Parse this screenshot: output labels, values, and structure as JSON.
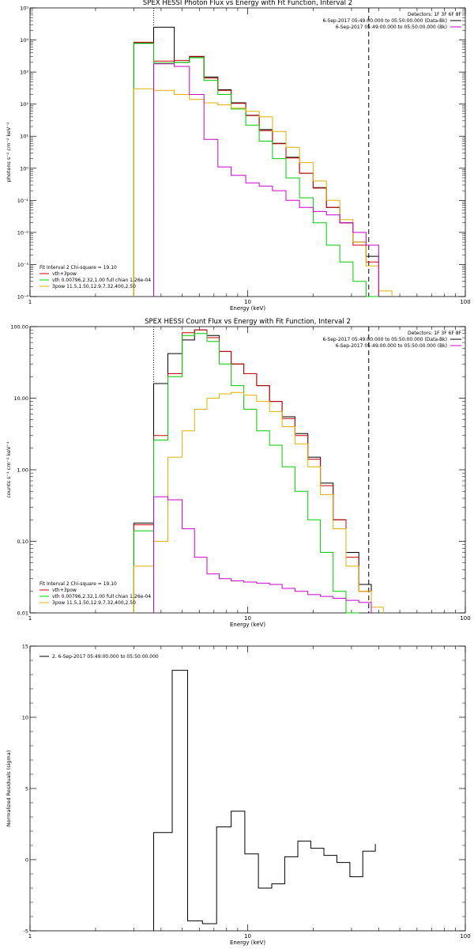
{
  "chart_data": [
    {
      "type": "line",
      "title": "SPEX HESSI Photon Flux vs Energy with Fit Function, Interval 2",
      "xlabel": "Energy (keV)",
      "ylabel": "photons s⁻¹ cm⁻² keV⁻¹",
      "xscale": "log",
      "yscale": "log",
      "xlim": [
        1,
        100
      ],
      "ylim": [
        0.0001,
        100000
      ],
      "x_ticks": [
        "1",
        "10",
        "100"
      ],
      "y_ticks": [
        {
          "v": 0.0001,
          "label": "10⁻⁴"
        },
        {
          "v": 0.001,
          "label": "10⁻³"
        },
        {
          "v": 0.01,
          "label": "10⁻²"
        },
        {
          "v": 0.1,
          "label": "10⁻¹"
        },
        {
          "v": 1,
          "label": "10⁰"
        },
        {
          "v": 10,
          "label": "10¹"
        },
        {
          "v": 100,
          "label": "10²"
        },
        {
          "v": 1000,
          "label": "10³"
        },
        {
          "v": 10000,
          "label": "10⁴"
        },
        {
          "v": 100000,
          "label": "10⁵"
        }
      ],
      "vlines": [
        {
          "x": 3.7,
          "style": "dotted",
          "color": "#000000"
        },
        {
          "x": 36,
          "style": "dashed",
          "color": "#000000"
        }
      ],
      "legend_topright": {
        "title": "Detectors: 1F 3F 6F 8F",
        "entries": [
          {
            "label": "6-Sep-2017 05:49:00.000 to 05:50:00.000 (Data-Bk)",
            "color": "#000000"
          },
          {
            "label": "6-Sep-2017 05:49:00.000 to 05:50:00.000 (Bk)",
            "color": "#cc00cc"
          }
        ]
      },
      "legend_bottomleft": {
        "title": "Fit Interval 2   Chi-square = 19.10",
        "entries": [
          {
            "label": "vth+3pow",
            "color": "#cc0000"
          },
          {
            "label": "vth 0.00796,2.32,1.00  full chian 1.26e-04",
            "color": "#00cc00"
          },
          {
            "label": "3pow 11.5,1.50,12.9,7.32,400,2.50",
            "color": "#e0b000"
          }
        ]
      },
      "edges": [
        3,
        3.7,
        4.6,
        5.4,
        6.3,
        7.3,
        8.4,
        9.8,
        11.3,
        13.0,
        15.0,
        17.3,
        20.0,
        23.0,
        26.5,
        30.5,
        35.0,
        40.0,
        46.0
      ],
      "series": [
        {
          "name": "6-Sep-2017 05:49:00.000 to 05:50:00.000 (Data-Bk)",
          "color": "#000000",
          "values": [
            8000,
            25000,
            2000,
            3000,
            700,
            280,
            110,
            45,
            16,
            6,
            2.2,
            0.7,
            0.25,
            0.06,
            0.02,
            0.005,
            0.0018,
            null
          ]
        },
        {
          "name": "vth+3pow",
          "color": "#cc0000",
          "values": [
            8500,
            2200,
            2300,
            3100,
            650,
            270,
            105,
            44,
            15,
            5.8,
            2.1,
            0.7,
            0.24,
            0.06,
            0.02,
            0.004,
            0.0012,
            null
          ]
        },
        {
          "name": "vth 0.00796,2.32,1.00  full chian 1.26e-04",
          "color": "#00cc00",
          "values": [
            7800,
            1900,
            2000,
            2800,
            550,
            200,
            70,
            22,
            7,
            2,
            0.5,
            0.12,
            0.02,
            0.004,
            0.0012,
            0.0003,
            0.0001,
            null
          ]
        },
        {
          "name": "3pow 11.5,1.50,12.9,7.32,400,2.50",
          "color": "#e0b000",
          "values": [
            300,
            270,
            200,
            140,
            110,
            95,
            75,
            60,
            40,
            14,
            4.5,
            1.5,
            0.4,
            0.1,
            0.025,
            0.005,
            0.0009,
            0.00015
          ]
        },
        {
          "name": "6-Sep-2017 05:49:00.000 to 05:50:00.000 (Bk)",
          "color": "#cc00cc",
          "values": [
            null,
            1800,
            1500,
            200,
            8,
            1.1,
            0.6,
            0.35,
            0.28,
            0.2,
            0.1,
            0.06,
            0.045,
            0.035,
            0.02,
            0.01,
            0.004,
            null
          ]
        }
      ]
    },
    {
      "type": "line",
      "title": "SPEX HESSI Count Flux vs Energy with Fit Function, Interval 2",
      "xlabel": "Energy (keV)",
      "ylabel": "counts s⁻¹ cm⁻² keV⁻¹",
      "xscale": "log",
      "yscale": "log",
      "xlim": [
        1,
        100
      ],
      "ylim": [
        0.01,
        100
      ],
      "x_ticks": [
        "1",
        "10",
        "100"
      ],
      "y_ticks": [
        {
          "v": 0.01,
          "label": "0.01"
        },
        {
          "v": 0.1,
          "label": "0.10"
        },
        {
          "v": 1,
          "label": "1.00"
        },
        {
          "v": 10,
          "label": "10.00"
        },
        {
          "v": 100,
          "label": "100.00"
        }
      ],
      "vlines": [
        {
          "x": 3.7,
          "style": "dotted",
          "color": "#000000"
        },
        {
          "x": 36,
          "style": "dashed",
          "color": "#000000"
        }
      ],
      "legend_topright": {
        "title": "Detectors: 1F 3F 6F 8F",
        "entries": [
          {
            "label": "6-Sep-2017 05:49:00.000 to 05:50:00.000 (Data-Bk)",
            "color": "#000000"
          },
          {
            "label": "6-Sep-2017 05:49:00.000 to 05:50:00.000 (Bk)",
            "color": "#cc00cc"
          }
        ]
      },
      "legend_bottomleft": {
        "title": "Fit Interval 2   Chi-square = 19.10",
        "entries": [
          {
            "label": "vth+3pow",
            "color": "#cc0000"
          },
          {
            "label": "vth 0.00796,2.32,1.00  full chian 1.26e-04",
            "color": "#00cc00"
          },
          {
            "label": "3pow 11.5,1.50,12.9,7.32,400,2.50",
            "color": "#e0b000"
          }
        ]
      },
      "edges": [
        3,
        3.7,
        4.3,
        5.0,
        5.7,
        6.5,
        7.4,
        8.4,
        9.6,
        11.0,
        12.6,
        14.4,
        16.5,
        18.9,
        21.6,
        24.7,
        28.3,
        32.4,
        37.0,
        42.0
      ],
      "series": [
        {
          "name": "6-Sep-2017 05:49:00.000 to 05:50:00.000 (Data-Bk)",
          "color": "#000000",
          "values": [
            0.18,
            16,
            42,
            65,
            90,
            75,
            45,
            30,
            22,
            15,
            9,
            5.5,
            3.2,
            1.5,
            0.65,
            0.2,
            0.07,
            0.025,
            null
          ]
        },
        {
          "name": "vth+3pow",
          "color": "#cc0000",
          "values": [
            0.17,
            3,
            22,
            82,
            90,
            70,
            45,
            30,
            22,
            15,
            9,
            5.2,
            3.0,
            1.4,
            0.6,
            0.2,
            0.06,
            0.02,
            null
          ]
        },
        {
          "name": "vth 0.00796,2.32,1.00  full chian 1.26e-04",
          "color": "#00cc00",
          "values": [
            0.14,
            2.6,
            20,
            75,
            80,
            62,
            30,
            15,
            7,
            3.5,
            2.2,
            1.1,
            0.5,
            0.2,
            0.07,
            0.02,
            0.01,
            null,
            null
          ]
        },
        {
          "name": "3pow 11.5,1.50,12.9,7.32,400,2.50",
          "color": "#e0b000",
          "values": [
            0.045,
            0.1,
            1.5,
            3.5,
            7,
            10,
            11.5,
            12,
            11,
            9,
            6.5,
            4,
            2.3,
            1.1,
            0.45,
            0.15,
            0.045,
            0.02,
            0.012
          ]
        },
        {
          "name": "6-Sep-2017 05:49:00.000 to 05:50:00.000 (Bk)",
          "color": "#cc00cc",
          "values": [
            null,
            0.42,
            0.38,
            0.15,
            0.06,
            0.035,
            0.03,
            0.028,
            0.027,
            0.026,
            0.025,
            0.022,
            0.02,
            0.018,
            0.017,
            0.016,
            0.015,
            0.014,
            null
          ]
        }
      ]
    },
    {
      "type": "line",
      "title": "",
      "xlabel": "Energy (keV)",
      "ylabel": "Normalized Residuals (sigma)",
      "xscale": "log",
      "yscale": "linear",
      "xlim": [
        1,
        100
      ],
      "ylim": [
        -5,
        15
      ],
      "x_ticks": [
        "1",
        "10",
        "100"
      ],
      "y_ticks": [
        {
          "v": -5,
          "label": "-5"
        },
        {
          "v": 0,
          "label": "0"
        },
        {
          "v": 5,
          "label": "5"
        },
        {
          "v": 10,
          "label": "10"
        },
        {
          "v": 15,
          "label": "15"
        }
      ],
      "legend": {
        "entries": [
          {
            "label": "2.  6-Sep-2017 05:49:00.000 to 05:50:00.000",
            "color": "#000000"
          }
        ]
      },
      "edges": [
        3.7,
        4.5,
        5.3,
        6.2,
        7.2,
        8.4,
        9.7,
        11.2,
        12.9,
        14.8,
        17.0,
        19.5,
        22.4,
        25.7,
        29.5,
        33.8,
        38.6
      ],
      "series": [
        {
          "name": "2.  6-Sep-2017 05:49:00.000 to 05:50:00.000",
          "color": "#000000",
          "values": [
            1.9,
            13.3,
            -4.3,
            -4.5,
            2.3,
            3.4,
            0.4,
            -2.0,
            -1.7,
            0.2,
            1.3,
            0.8,
            0.3,
            -0.2,
            -1.2,
            0.6,
            1.1
          ]
        }
      ]
    }
  ]
}
